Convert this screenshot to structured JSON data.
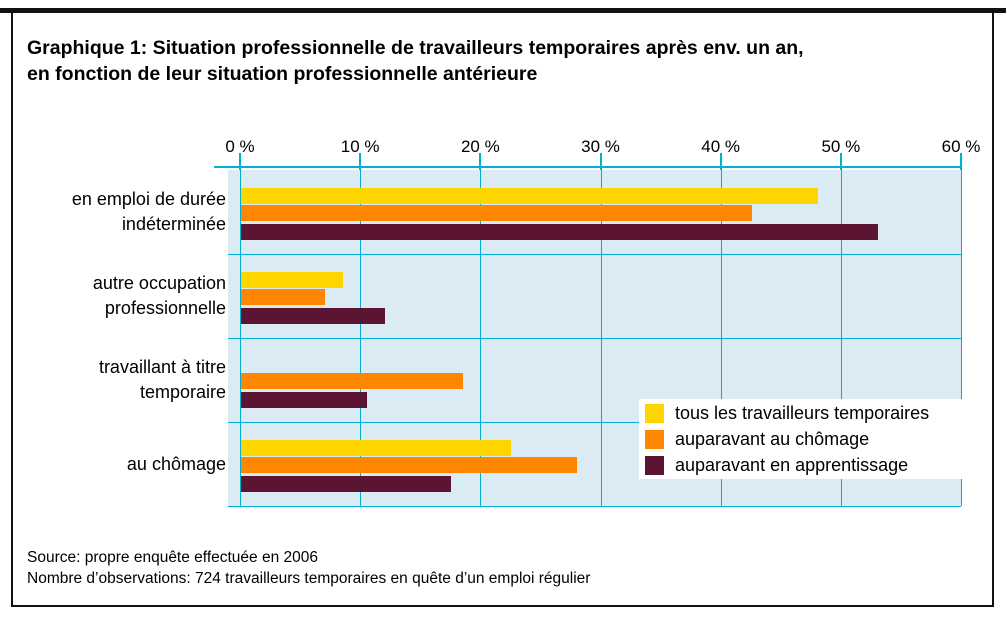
{
  "header": {
    "title": "Graphique 1: Situation professionnelle de travailleurs temporaires après env. un an,\nen fonction de leur situation professionnelle antérieure"
  },
  "chart_data": {
    "type": "bar",
    "orientation": "horizontal",
    "title": "Graphique 1: Situation professionnelle de travailleurs temporaires après env. un an, en fonction de leur situation professionnelle antérieure",
    "categories": [
      "en emploi de durée indéterminée",
      "autre occupation professionnelle",
      "travaillant à titre temporaire",
      "au chômage"
    ],
    "category_lines": [
      [
        "en emploi de durée",
        "indéterminée"
      ],
      [
        "autre occupation",
        "professionnelle"
      ],
      [
        "travaillant à titre",
        "temporaire"
      ],
      [
        "au chômage"
      ]
    ],
    "series": [
      {
        "name": "tous les travailleurs temporaires",
        "color": "#FFD500",
        "values": [
          48,
          8.5,
          null,
          22.5
        ]
      },
      {
        "name": "auparavant au chômage",
        "color": "#FF8600",
        "values": [
          42.5,
          7,
          18.5,
          28
        ]
      },
      {
        "name": "auparavant en apprentissage",
        "color": "#5B1533",
        "values": [
          53,
          12,
          10.5,
          17.5
        ]
      }
    ],
    "x_ticks": [
      "0 %",
      "10 %",
      "20 %",
      "30 %",
      "40 %",
      "50 %",
      "60 %"
    ],
    "xlim": [
      0,
      60
    ],
    "unit": "percent",
    "grid": "vertical-gridlines-and-row-separators",
    "legend_position": "inside-bottom-right",
    "colors": {
      "plot_bg": "#DAEBF3",
      "grid": "#00AFD4",
      "text": "#000000",
      "frame": "#111111",
      "legend_bg": "#FFFFFF"
    }
  },
  "footer": {
    "source": "Source: propre enquête effectuée en 2006",
    "observations": "Nombre d’observations: 724 travailleurs temporaires en quête d’un emploi régulier"
  }
}
